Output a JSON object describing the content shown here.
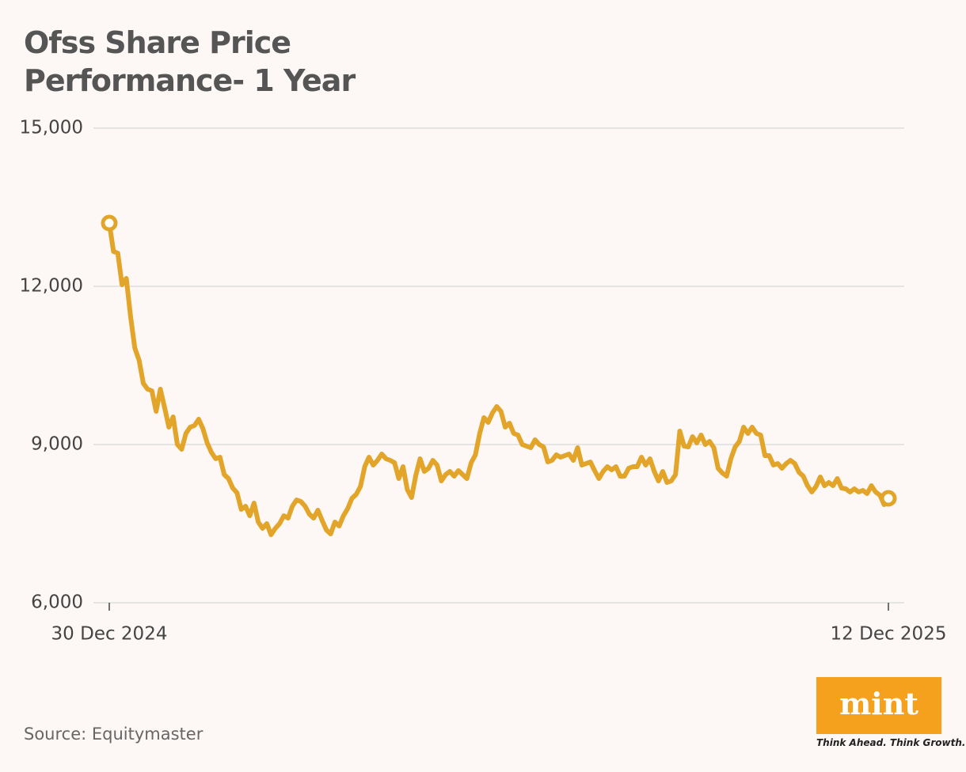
{
  "chart_data": {
    "type": "line",
    "title": "Ofss Share Price Performance- 1 Year",
    "source": "Source: Equitymaster",
    "color": "#e2a52a",
    "grid": true,
    "ylim": [
      6000,
      15000
    ],
    "yticks": [
      {
        "value": 6000,
        "label": "6,000"
      },
      {
        "value": 9000,
        "label": "9,000"
      },
      {
        "value": 12000,
        "label": "12,000"
      },
      {
        "value": 15000,
        "label": "15,000"
      }
    ],
    "categories": [
      "30 Dec 2024",
      null,
      null,
      null,
      null,
      null,
      null,
      null,
      null,
      null,
      null,
      null,
      null,
      null,
      null,
      null,
      null,
      null,
      null,
      null,
      null,
      null,
      null,
      null,
      null,
      null,
      null,
      null,
      null,
      null,
      null,
      null,
      null,
      null,
      null,
      null,
      null,
      null,
      null,
      null,
      null,
      null,
      null,
      null,
      null,
      null,
      null,
      null,
      null,
      null,
      null,
      null,
      null,
      null,
      null,
      null,
      null,
      null,
      null,
      null,
      null,
      null,
      null,
      null,
      null,
      null,
      null,
      null,
      null,
      null,
      null,
      null,
      null,
      null,
      null,
      null,
      null,
      null,
      null,
      null,
      null,
      null,
      null,
      null,
      null,
      null,
      null,
      null,
      null,
      null,
      null,
      null,
      null,
      null,
      null,
      null,
      null,
      null,
      null,
      null,
      null,
      null,
      null,
      null,
      null,
      null,
      null,
      null,
      null,
      null,
      null,
      null,
      null,
      null,
      null,
      null,
      null,
      null,
      null,
      null,
      null,
      null,
      null,
      null,
      null,
      null,
      null,
      null,
      null,
      null,
      null,
      null,
      null,
      null,
      null,
      null,
      null,
      null,
      null,
      null,
      null,
      null,
      null,
      null,
      null,
      null,
      null,
      null,
      null,
      null,
      null,
      null,
      null,
      null,
      null,
      null,
      null,
      null,
      null,
      null,
      null,
      null,
      null,
      null,
      null,
      null,
      null,
      null,
      null,
      null,
      null,
      null,
      null,
      null,
      null,
      null,
      null,
      null,
      null,
      null,
      null,
      null,
      null,
      "12 Dec 2025"
    ],
    "values": [
      13200,
      12660,
      12630,
      12030,
      12150,
      11430,
      10830,
      10600,
      10160,
      10050,
      10020,
      9630,
      10050,
      9700,
      9330,
      9525,
      9000,
      8910,
      9210,
      9330,
      9360,
      9480,
      9300,
      9030,
      8850,
      8730,
      8760,
      8430,
      8355,
      8175,
      8085,
      7770,
      7830,
      7650,
      7890,
      7530,
      7410,
      7500,
      7290,
      7410,
      7500,
      7650,
      7605,
      7830,
      7950,
      7920,
      7830,
      7680,
      7605,
      7755,
      7560,
      7380,
      7305,
      7530,
      7455,
      7650,
      7785,
      7980,
      8055,
      8205,
      8580,
      8760,
      8610,
      8700,
      8820,
      8730,
      8700,
      8655,
      8355,
      8580,
      8145,
      7995,
      8415,
      8730,
      8490,
      8550,
      8700,
      8610,
      8310,
      8430,
      8490,
      8400,
      8505,
      8430,
      8355,
      8655,
      8805,
      9210,
      9510,
      9420,
      9600,
      9720,
      9630,
      9330,
      9405,
      9210,
      9180,
      9000,
      8970,
      8940,
      9090,
      9000,
      8955,
      8670,
      8700,
      8805,
      8760,
      8790,
      8820,
      8700,
      8940,
      8610,
      8640,
      8670,
      8505,
      8355,
      8490,
      8580,
      8520,
      8580,
      8400,
      8400,
      8550,
      8580,
      8580,
      8760,
      8610,
      8730,
      8490,
      8310,
      8490,
      8280,
      8310,
      8430,
      9255,
      8970,
      8955,
      9150,
      9030,
      9180,
      9000,
      9060,
      8940,
      8550,
      8460,
      8400,
      8730,
      8955,
      9060,
      9330,
      9210,
      9330,
      9210,
      9180,
      8790,
      8790,
      8610,
      8640,
      8550,
      8640,
      8700,
      8640,
      8475,
      8400,
      8220,
      8100,
      8205,
      8385,
      8220,
      8280,
      8220,
      8355,
      8175,
      8160,
      8100,
      8160,
      8100,
      8130,
      8070,
      8220,
      8100,
      8040,
      7860,
      7980
    ]
  },
  "logo": {
    "name": "mint",
    "tagline": "Think Ahead. Think Growth."
  }
}
